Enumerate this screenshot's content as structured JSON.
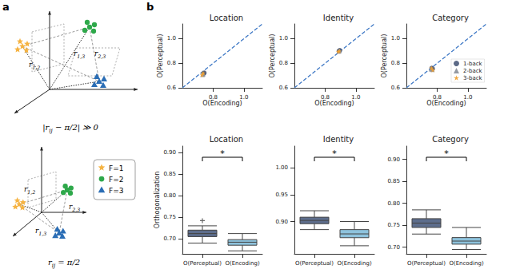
{
  "panel_labels": {
    "a": "a",
    "b": "b"
  },
  "diagram": {
    "legend": [
      {
        "label": "F=1",
        "color": "#f5b342",
        "marker": "star"
      },
      {
        "label": "F=2",
        "color": "#2ea84a",
        "marker": "circle"
      },
      {
        "label": "F=3",
        "color": "#2a6db5",
        "marker": "triangle"
      }
    ],
    "angle_labels": [
      {
        "r": "r",
        "sub": "1,2"
      },
      {
        "r": "r",
        "sub": "1,3"
      },
      {
        "r": "r",
        "sub": "2,3"
      }
    ],
    "formulas": [
      [
        {
          "text": "|r"
        },
        {
          "text": "ij",
          "sub": true
        },
        {
          "text": " − π/2| ≫ 0"
        }
      ],
      [
        {
          "text": "r"
        },
        {
          "text": "ij",
          "sub": true
        },
        {
          "text": " = π/2"
        }
      ]
    ]
  },
  "chart_data": [
    {
      "type": "scatter",
      "title": "Location",
      "x_label": "O(Encoding)",
      "y_label": "O(Perceptual)",
      "xlim": [
        0.6,
        1.12
      ],
      "ylim": [
        0.6,
        1.12
      ],
      "xticks": [
        0.8,
        {
          "value": 1,
          "label": "1.0"
        }
      ],
      "yticks": [
        0.6,
        0.8,
        {
          "value": 1,
          "label": "1.0"
        }
      ],
      "grid": false,
      "series": [
        {
          "name": "1-back",
          "color": "#4a5a7a",
          "marker": "circle",
          "x": [
            0.742,
            0.738
          ],
          "values": [
            0.722,
            0.716
          ]
        },
        {
          "name": "2-back",
          "color": "#8a8f99",
          "marker": "triangle",
          "x": [
            0.735,
            0.731
          ],
          "values": [
            0.712,
            0.708
          ]
        },
        {
          "name": "3-back",
          "color": "#f0a030",
          "marker": "star",
          "x": [
            0.728,
            0.735
          ],
          "values": [
            0.705,
            0.72
          ]
        },
        {
          "type": "line",
          "line_style": "dashed",
          "color": "#3a75c4",
          "x": [
            0.6,
            1.12
          ],
          "values": [
            0.6,
            1.12
          ]
        }
      ]
    },
    {
      "type": "scatter",
      "title": "Identity",
      "x_label": "O(Encoding)",
      "y_label": "O(Perceptual)",
      "xlim": [
        0.6,
        1.12
      ],
      "ylim": [
        0.6,
        1.12
      ],
      "xticks": [
        0.8,
        {
          "value": 1,
          "label": "1.0"
        }
      ],
      "yticks": [
        0.6,
        0.8,
        {
          "value": 1,
          "label": "1.0"
        }
      ],
      "grid": false,
      "series": [
        {
          "name": "1-back",
          "color": "#4a5a7a",
          "marker": "circle",
          "x": [
            0.895,
            0.89
          ],
          "values": [
            0.905,
            0.9
          ]
        },
        {
          "name": "2-back",
          "color": "#8a8f99",
          "marker": "triangle",
          "x": [
            0.888,
            0.893
          ],
          "values": [
            0.897,
            0.903
          ]
        },
        {
          "name": "3-back",
          "color": "#f0a030",
          "marker": "star",
          "x": [
            0.892,
            0.885
          ],
          "values": [
            0.9,
            0.895
          ]
        },
        {
          "type": "line",
          "line_style": "dashed",
          "color": "#3a75c4",
          "x": [
            0.6,
            1.12
          ],
          "values": [
            0.6,
            1.12
          ]
        }
      ]
    },
    {
      "type": "scatter",
      "title": "Category",
      "x_label": "O(Encoding)",
      "y_label": "O(Perceptual)",
      "xlim": [
        0.6,
        1.12
      ],
      "ylim": [
        0.6,
        1.12
      ],
      "xticks": [
        0.8,
        {
          "value": 1,
          "label": "1.0"
        }
      ],
      "yticks": [
        0.6,
        0.8,
        {
          "value": 1,
          "label": "1.0"
        }
      ],
      "grid": false,
      "legend": "lower right",
      "series": [
        {
          "name": "1-back",
          "color": "#4a5a7a",
          "marker": "circle",
          "x": [
            0.765,
            0.77
          ],
          "values": [
            0.76,
            0.755
          ]
        },
        {
          "name": "2-back",
          "color": "#8a8f99",
          "marker": "triangle",
          "x": [
            0.76,
            0.768
          ],
          "values": [
            0.752,
            0.748
          ]
        },
        {
          "name": "3-back",
          "color": "#f0a030",
          "marker": "star",
          "x": [
            0.772,
            0.763
          ],
          "values": [
            0.745,
            0.762
          ]
        },
        {
          "type": "line",
          "line_style": "dashed",
          "color": "#3a75c4",
          "x": [
            0.6,
            1.12
          ],
          "values": [
            0.6,
            1.12
          ]
        }
      ]
    },
    {
      "type": "boxplot",
      "title": "Location",
      "y_label": "Orthogonalization",
      "categories": [
        "O(Perceptual)",
        "O(Encoding)"
      ],
      "values": [
        [
          0.69,
          0.705,
          0.712,
          0.72,
          0.73
        ],
        [
          0.672,
          0.685,
          0.692,
          0.698,
          0.712
        ]
      ],
      "outliers": [
        {
          "category": 0,
          "value": 0.742
        }
      ],
      "colors": [
        "#5d6d8c",
        "#8ec3dd"
      ],
      "ylim": [
        0.665,
        0.915
      ],
      "yticks": [
        {
          "value": 0.7,
          "label": "0.70"
        },
        0.75,
        {
          "value": 0.8,
          "label": "0.80"
        },
        0.85,
        {
          "value": 0.9,
          "label": "0.90"
        }
      ],
      "annotation": "*",
      "grid": false
    },
    {
      "type": "boxplot",
      "title": "Identity",
      "categories": [
        "O(Perceptual)",
        "O(Encoding)"
      ],
      "values": [
        [
          0.885,
          0.896,
          0.902,
          0.908,
          0.92
        ],
        [
          0.855,
          0.87,
          0.877,
          0.885,
          0.9
        ]
      ],
      "outliers": [],
      "colors": [
        "#5d6d8c",
        "#8ec3dd"
      ],
      "ylim": [
        0.84,
        1.04
      ],
      "yticks": [
        {
          "value": 0.9,
          "label": "0.90"
        },
        0.95,
        {
          "value": 1,
          "label": "1.00"
        }
      ],
      "annotation": "*",
      "grid": false
    },
    {
      "type": "boxplot",
      "title": "Category",
      "categories": [
        "O(Perceptual)",
        "O(Encoding)"
      ],
      "values": [
        [
          0.73,
          0.745,
          0.755,
          0.765,
          0.785
        ],
        [
          0.695,
          0.707,
          0.714,
          0.722,
          0.745
        ]
      ],
      "outliers": [],
      "colors": [
        "#5d6d8c",
        "#8ec3dd"
      ],
      "ylim": [
        0.685,
        0.93
      ],
      "yticks": [
        {
          "value": 0.7,
          "label": "0.70"
        },
        0.75,
        {
          "value": 0.8,
          "label": "0.80"
        },
        0.85,
        {
          "value": 0.9,
          "label": "0.90"
        }
      ],
      "annotation": "*",
      "grid": false
    }
  ]
}
